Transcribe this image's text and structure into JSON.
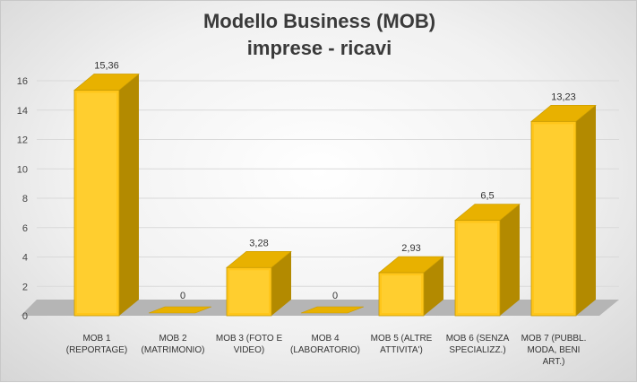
{
  "chart_data": {
    "type": "bar",
    "title": [
      "Modello Business (MOB)",
      "imprese - ricavi"
    ],
    "categories": [
      [
        "MOB 1",
        "(REPORTAGE)"
      ],
      [
        "MOB 2",
        "(MATRIMONIO)"
      ],
      [
        "MOB 3 (FOTO E",
        "VIDEO)"
      ],
      [
        "MOB 4",
        "(LABORATORIO)"
      ],
      [
        "MOB 5 (ALTRE",
        "ATTIVITA')"
      ],
      [
        "MOB 6 (SENZA",
        "SPECIALIZZ.)"
      ],
      [
        "MOB 7 (PUBBL.",
        "MODA, BENI",
        "ART.)"
      ]
    ],
    "values": [
      15.36,
      0,
      3.28,
      0,
      2.93,
      6.5,
      13.23
    ],
    "data_labels": [
      "15,36",
      "0",
      "3,28",
      "0",
      "2,93",
      "6,5",
      "13,23"
    ],
    "ylim": [
      0,
      16
    ],
    "yticks": [
      0,
      2,
      4,
      6,
      8,
      10,
      12,
      14,
      16
    ],
    "grid": true,
    "colors": {
      "bar_front": "#FFC61A",
      "bar_front_light": "#FFD84A",
      "bar_side": "#B38A00",
      "bar_top": "#E8B100",
      "bar_edge": "#C79A00",
      "floor": "#B5B5B5",
      "grid": "#D9D9D9"
    }
  }
}
